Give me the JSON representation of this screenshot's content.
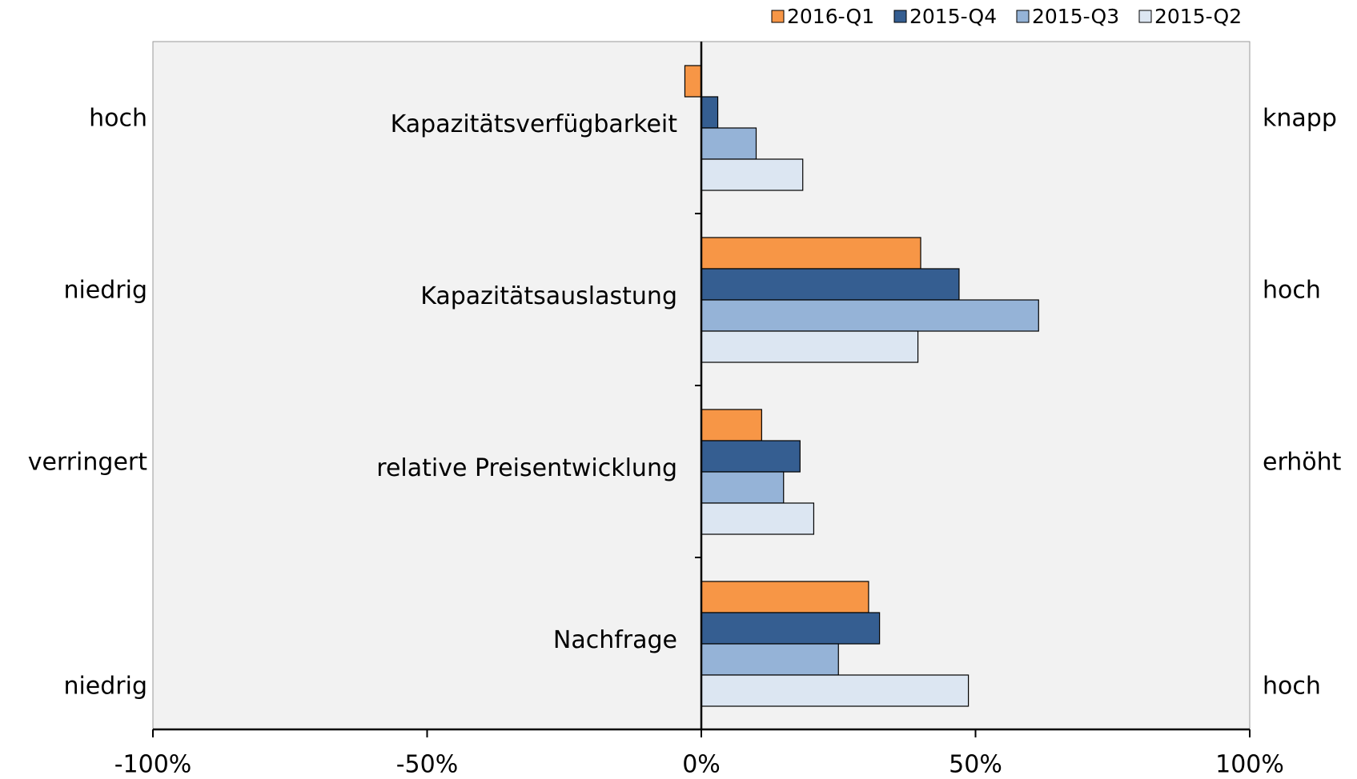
{
  "chart_data": {
    "type": "bar",
    "orientation": "horizontal",
    "categories": [
      "Kapazitätsverfügbarkeit",
      "Kapazitätsauslastung",
      "relative Preisentwicklung",
      "Nachfrage"
    ],
    "left_labels": [
      "hoch",
      "niedrig",
      "verringert",
      "niedrig"
    ],
    "right_labels": [
      "knapp",
      "hoch",
      "erhöht",
      "hoch"
    ],
    "series": [
      {
        "name": "2016-Q1",
        "color": "#f79646",
        "values": [
          -3,
          40,
          11,
          30.5
        ]
      },
      {
        "name": "2015-Q4",
        "color": "#355e91",
        "values": [
          3,
          47,
          18,
          32.5
        ]
      },
      {
        "name": "2015-Q3",
        "color": "#95b3d7",
        "values": [
          10,
          61.5,
          15,
          25
        ]
      },
      {
        "name": "2015-Q2",
        "color": "#dce6f2",
        "values": [
          18.5,
          39.5,
          20.5,
          48.7
        ]
      }
    ],
    "xlim": [
      -100,
      100
    ],
    "xticks": [
      {
        "value": -100,
        "label": "-100%"
      },
      {
        "value": -50,
        "label": "-50%"
      },
      {
        "value": 0,
        "label": "0%"
      },
      {
        "value": 50,
        "label": "50%"
      },
      {
        "value": 100,
        "label": "100%"
      }
    ],
    "legend": "top-right"
  }
}
